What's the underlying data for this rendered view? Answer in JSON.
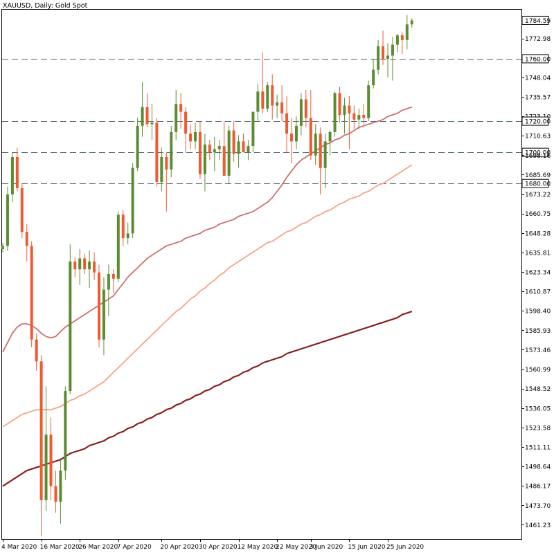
{
  "header": {
    "symbol": "XAUUSD",
    "timeframe": "Daily",
    "description": "Gold Spot",
    "title_text": "XAUUSD, Daily: Gold Spot"
  },
  "colors": {
    "bull": "#5b8c32",
    "bear": "#ee5a32",
    "ma_short": "#cd6e6e",
    "ma_mid": "#f4a582",
    "ma_long": "#8b1e1e",
    "level_line": "#4a6670",
    "axis": "#000000",
    "last_price_bg": "#ffffff"
  },
  "chart_data": {
    "type": "candlestick",
    "title": "XAUUSD, Daily: Gold Spot",
    "ylim": [
      1453,
      1791
    ],
    "y_ticks": [
      "1784.59",
      "1772.98",
      "1760.00",
      "1748.04",
      "1735.57",
      "1723.10",
      "1720.00",
      "1710.63",
      "1700.00",
      "1698.16",
      "1685.69",
      "1680.00",
      "1673.22",
      "1660.75",
      "1648.28",
      "1635.81",
      "1623.34",
      "1610.87",
      "1598.40",
      "1585.93",
      "1573.46",
      "1560.99",
      "1548.52",
      "1536.05",
      "1523.58",
      "1511.11",
      "1498.64",
      "1486.17",
      "1473.70",
      "1461.23"
    ],
    "x_ticks": [
      {
        "label": "4 Mar 2020",
        "index": 0
      },
      {
        "label": "16 Mar 2020",
        "index": 8
      },
      {
        "label": "26 Mar 2020",
        "index": 16
      },
      {
        "label": "7 Apr 2020",
        "index": 24
      },
      {
        "label": "20 Apr 2020",
        "index": 33
      },
      {
        "label": "30 Apr 2020",
        "index": 41
      },
      {
        "label": "12 May 2020",
        "index": 49
      },
      {
        "label": "22 May 2020",
        "index": 57
      },
      {
        "label": "3 Jun 2020",
        "index": 64
      },
      {
        "label": "15 Jun 2020",
        "index": 72
      },
      {
        "label": "25 Jun 2020",
        "index": 80
      }
    ],
    "horizontal_levels": [
      "1760.00",
      "1720.00",
      "1700.00",
      "1680.00"
    ],
    "last_price": "1784.59",
    "candles": [
      {
        "o": 1638,
        "h": 1642,
        "l": 1636,
        "c": 1640
      },
      {
        "o": 1640,
        "h": 1678,
        "l": 1637,
        "c": 1673
      },
      {
        "o": 1673,
        "h": 1700,
        "l": 1668,
        "c": 1697
      },
      {
        "o": 1697,
        "h": 1703,
        "l": 1675,
        "c": 1677
      },
      {
        "o": 1677,
        "h": 1680,
        "l": 1645,
        "c": 1649
      },
      {
        "o": 1649,
        "h": 1654,
        "l": 1630,
        "c": 1640
      },
      {
        "o": 1640,
        "h": 1643,
        "l": 1575,
        "c": 1580
      },
      {
        "o": 1580,
        "h": 1584,
        "l": 1560,
        "c": 1566
      },
      {
        "o": 1566,
        "h": 1570,
        "l": 1454,
        "c": 1477
      },
      {
        "o": 1477,
        "h": 1550,
        "l": 1470,
        "c": 1519
      },
      {
        "o": 1519,
        "h": 1530,
        "l": 1477,
        "c": 1486
      },
      {
        "o": 1486,
        "h": 1496,
        "l": 1469,
        "c": 1476
      },
      {
        "o": 1476,
        "h": 1504,
        "l": 1462,
        "c": 1496
      },
      {
        "o": 1496,
        "h": 1550,
        "l": 1490,
        "c": 1547
      },
      {
        "o": 1547,
        "h": 1641,
        "l": 1545,
        "c": 1630
      },
      {
        "o": 1630,
        "h": 1633,
        "l": 1620,
        "c": 1625
      },
      {
        "o": 1625,
        "h": 1638,
        "l": 1615,
        "c": 1632
      },
      {
        "o": 1632,
        "h": 1635,
        "l": 1622,
        "c": 1625
      },
      {
        "o": 1625,
        "h": 1637,
        "l": 1613,
        "c": 1630
      },
      {
        "o": 1630,
        "h": 1636,
        "l": 1618,
        "c": 1623
      },
      {
        "o": 1623,
        "h": 1628,
        "l": 1575,
        "c": 1580
      },
      {
        "o": 1580,
        "h": 1620,
        "l": 1570,
        "c": 1612
      },
      {
        "o": 1612,
        "h": 1628,
        "l": 1595,
        "c": 1622
      },
      {
        "o": 1622,
        "h": 1625,
        "l": 1610,
        "c": 1619
      },
      {
        "o": 1619,
        "h": 1662,
        "l": 1617,
        "c": 1660
      },
      {
        "o": 1660,
        "h": 1663,
        "l": 1640,
        "c": 1645
      },
      {
        "o": 1645,
        "h": 1655,
        "l": 1641,
        "c": 1648
      },
      {
        "o": 1648,
        "h": 1693,
        "l": 1645,
        "c": 1690
      },
      {
        "o": 1690,
        "h": 1722,
        "l": 1688,
        "c": 1717
      },
      {
        "o": 1717,
        "h": 1745,
        "l": 1710,
        "c": 1729
      },
      {
        "o": 1729,
        "h": 1738,
        "l": 1716,
        "c": 1718
      },
      {
        "o": 1718,
        "h": 1731,
        "l": 1708,
        "c": 1719
      },
      {
        "o": 1719,
        "h": 1722,
        "l": 1678,
        "c": 1681
      },
      {
        "o": 1681,
        "h": 1703,
        "l": 1675,
        "c": 1697
      },
      {
        "o": 1697,
        "h": 1700,
        "l": 1662,
        "c": 1689
      },
      {
        "o": 1689,
        "h": 1717,
        "l": 1684,
        "c": 1713
      },
      {
        "o": 1713,
        "h": 1740,
        "l": 1708,
        "c": 1731
      },
      {
        "o": 1731,
        "h": 1738,
        "l": 1715,
        "c": 1726
      },
      {
        "o": 1726,
        "h": 1729,
        "l": 1700,
        "c": 1712
      },
      {
        "o": 1712,
        "h": 1718,
        "l": 1702,
        "c": 1707
      },
      {
        "o": 1707,
        "h": 1719,
        "l": 1702,
        "c": 1713
      },
      {
        "o": 1713,
        "h": 1720,
        "l": 1683,
        "c": 1686
      },
      {
        "o": 1686,
        "h": 1712,
        "l": 1675,
        "c": 1705
      },
      {
        "o": 1705,
        "h": 1708,
        "l": 1695,
        "c": 1700
      },
      {
        "o": 1700,
        "h": 1710,
        "l": 1688,
        "c": 1702
      },
      {
        "o": 1702,
        "h": 1708,
        "l": 1695,
        "c": 1704
      },
      {
        "o": 1704,
        "h": 1720,
        "l": 1685,
        "c": 1685
      },
      {
        "o": 1685,
        "h": 1717,
        "l": 1680,
        "c": 1714
      },
      {
        "o": 1714,
        "h": 1720,
        "l": 1694,
        "c": 1699
      },
      {
        "o": 1699,
        "h": 1711,
        "l": 1690,
        "c": 1707
      },
      {
        "o": 1707,
        "h": 1712,
        "l": 1700,
        "c": 1700
      },
      {
        "o": 1700,
        "h": 1708,
        "l": 1695,
        "c": 1704
      },
      {
        "o": 1704,
        "h": 1726,
        "l": 1700,
        "c": 1726
      },
      {
        "o": 1726,
        "h": 1744,
        "l": 1720,
        "c": 1739
      },
      {
        "o": 1739,
        "h": 1764,
        "l": 1725,
        "c": 1728
      },
      {
        "o": 1728,
        "h": 1745,
        "l": 1726,
        "c": 1743
      },
      {
        "o": 1743,
        "h": 1750,
        "l": 1721,
        "c": 1730
      },
      {
        "o": 1730,
        "h": 1737,
        "l": 1722,
        "c": 1732
      },
      {
        "o": 1732,
        "h": 1743,
        "l": 1720,
        "c": 1725
      },
      {
        "o": 1725,
        "h": 1736,
        "l": 1700,
        "c": 1712
      },
      {
        "o": 1712,
        "h": 1722,
        "l": 1693,
        "c": 1707
      },
      {
        "o": 1707,
        "h": 1723,
        "l": 1702,
        "c": 1717
      },
      {
        "o": 1717,
        "h": 1738,
        "l": 1711,
        "c": 1734
      },
      {
        "o": 1734,
        "h": 1740,
        "l": 1716,
        "c": 1722
      },
      {
        "o": 1722,
        "h": 1740,
        "l": 1695,
        "c": 1698
      },
      {
        "o": 1698,
        "h": 1718,
        "l": 1692,
        "c": 1712
      },
      {
        "o": 1712,
        "h": 1716,
        "l": 1673,
        "c": 1690
      },
      {
        "o": 1690,
        "h": 1712,
        "l": 1677,
        "c": 1707
      },
      {
        "o": 1707,
        "h": 1714,
        "l": 1698,
        "c": 1713
      },
      {
        "o": 1713,
        "h": 1739,
        "l": 1710,
        "c": 1738
      },
      {
        "o": 1738,
        "h": 1742,
        "l": 1719,
        "c": 1724
      },
      {
        "o": 1724,
        "h": 1735,
        "l": 1712,
        "c": 1730
      },
      {
        "o": 1730,
        "h": 1736,
        "l": 1702,
        "c": 1725
      },
      {
        "o": 1725,
        "h": 1730,
        "l": 1715,
        "c": 1721
      },
      {
        "o": 1721,
        "h": 1728,
        "l": 1715,
        "c": 1724
      },
      {
        "o": 1724,
        "h": 1731,
        "l": 1718,
        "c": 1722
      },
      {
        "o": 1722,
        "h": 1746,
        "l": 1720,
        "c": 1743
      },
      {
        "o": 1743,
        "h": 1760,
        "l": 1741,
        "c": 1753
      },
      {
        "o": 1753,
        "h": 1772,
        "l": 1750,
        "c": 1768
      },
      {
        "o": 1768,
        "h": 1778,
        "l": 1756,
        "c": 1760
      },
      {
        "o": 1760,
        "h": 1770,
        "l": 1748,
        "c": 1762
      },
      {
        "o": 1762,
        "h": 1774,
        "l": 1746,
        "c": 1769
      },
      {
        "o": 1769,
        "h": 1776,
        "l": 1764,
        "c": 1775
      },
      {
        "o": 1775,
        "h": 1777,
        "l": 1763,
        "c": 1772
      },
      {
        "o": 1772,
        "h": 1788,
        "l": 1766,
        "c": 1782
      },
      {
        "o": 1782,
        "h": 1786,
        "l": 1780,
        "c": 1784.59
      }
    ],
    "series": [
      {
        "kind": "moving-average-short",
        "values": [
          1572,
          1578,
          1584,
          1588,
          1590,
          1590,
          1589,
          1587,
          1584,
          1582,
          1581,
          1582,
          1585,
          1588,
          1590,
          1592,
          1594,
          1596,
          1598,
          1600,
          1602,
          1604,
          1606,
          1608,
          1612,
          1616,
          1620,
          1623,
          1626,
          1629,
          1632,
          1634,
          1636,
          1638,
          1640,
          1641,
          1642,
          1643,
          1645,
          1646,
          1647,
          1648,
          1650,
          1651,
          1652,
          1654,
          1655,
          1656,
          1657,
          1659,
          1660,
          1661,
          1662,
          1664,
          1666,
          1668,
          1671,
          1675,
          1679,
          1684,
          1688,
          1692,
          1695,
          1697,
          1699,
          1701,
          1703,
          1705,
          1706,
          1708,
          1709,
          1711,
          1712,
          1714,
          1716,
          1717,
          1718,
          1719,
          1720,
          1721,
          1723,
          1724,
          1725,
          1727,
          1728,
          1729
        ]
      },
      {
        "kind": "moving-average-mid",
        "values": [
          1524,
          1526,
          1528,
          1530,
          1532,
          1533,
          1534,
          1535,
          1535,
          1535,
          1535,
          1536,
          1537,
          1539,
          1541,
          1542,
          1544,
          1545,
          1547,
          1549,
          1551,
          1553,
          1556,
          1559,
          1562,
          1565,
          1568,
          1571,
          1574,
          1577,
          1580,
          1583,
          1586,
          1589,
          1592,
          1595,
          1598,
          1600,
          1603,
          1606,
          1608,
          1611,
          1613,
          1616,
          1618,
          1621,
          1623,
          1626,
          1628,
          1630,
          1632,
          1634,
          1636,
          1638,
          1640,
          1642,
          1643,
          1645,
          1647,
          1649,
          1650,
          1652,
          1654,
          1655,
          1657,
          1659,
          1660,
          1662,
          1663,
          1665,
          1667,
          1668,
          1670,
          1671,
          1672,
          1674,
          1675,
          1677,
          1679,
          1680,
          1682,
          1684,
          1686,
          1688,
          1690,
          1692
        ]
      },
      {
        "kind": "moving-average-long",
        "values": [
          1486,
          1488,
          1490,
          1492,
          1494,
          1496,
          1497,
          1498,
          1499,
          1500,
          1501,
          1502,
          1503,
          1505,
          1507,
          1508,
          1509,
          1510,
          1512,
          1513,
          1514,
          1515,
          1517,
          1518,
          1520,
          1521,
          1523,
          1524,
          1526,
          1527,
          1529,
          1530,
          1532,
          1533,
          1535,
          1536,
          1538,
          1539,
          1541,
          1542,
          1544,
          1545,
          1547,
          1548,
          1550,
          1551,
          1553,
          1554,
          1556,
          1557,
          1559,
          1560,
          1562,
          1563,
          1565,
          1566,
          1567,
          1568,
          1569,
          1571,
          1572,
          1573,
          1574,
          1575,
          1576,
          1577,
          1578,
          1579,
          1580,
          1581,
          1582,
          1583,
          1584,
          1585,
          1586,
          1587,
          1588,
          1589,
          1590,
          1591,
          1592,
          1593,
          1594,
          1596,
          1597,
          1598
        ]
      }
    ]
  }
}
